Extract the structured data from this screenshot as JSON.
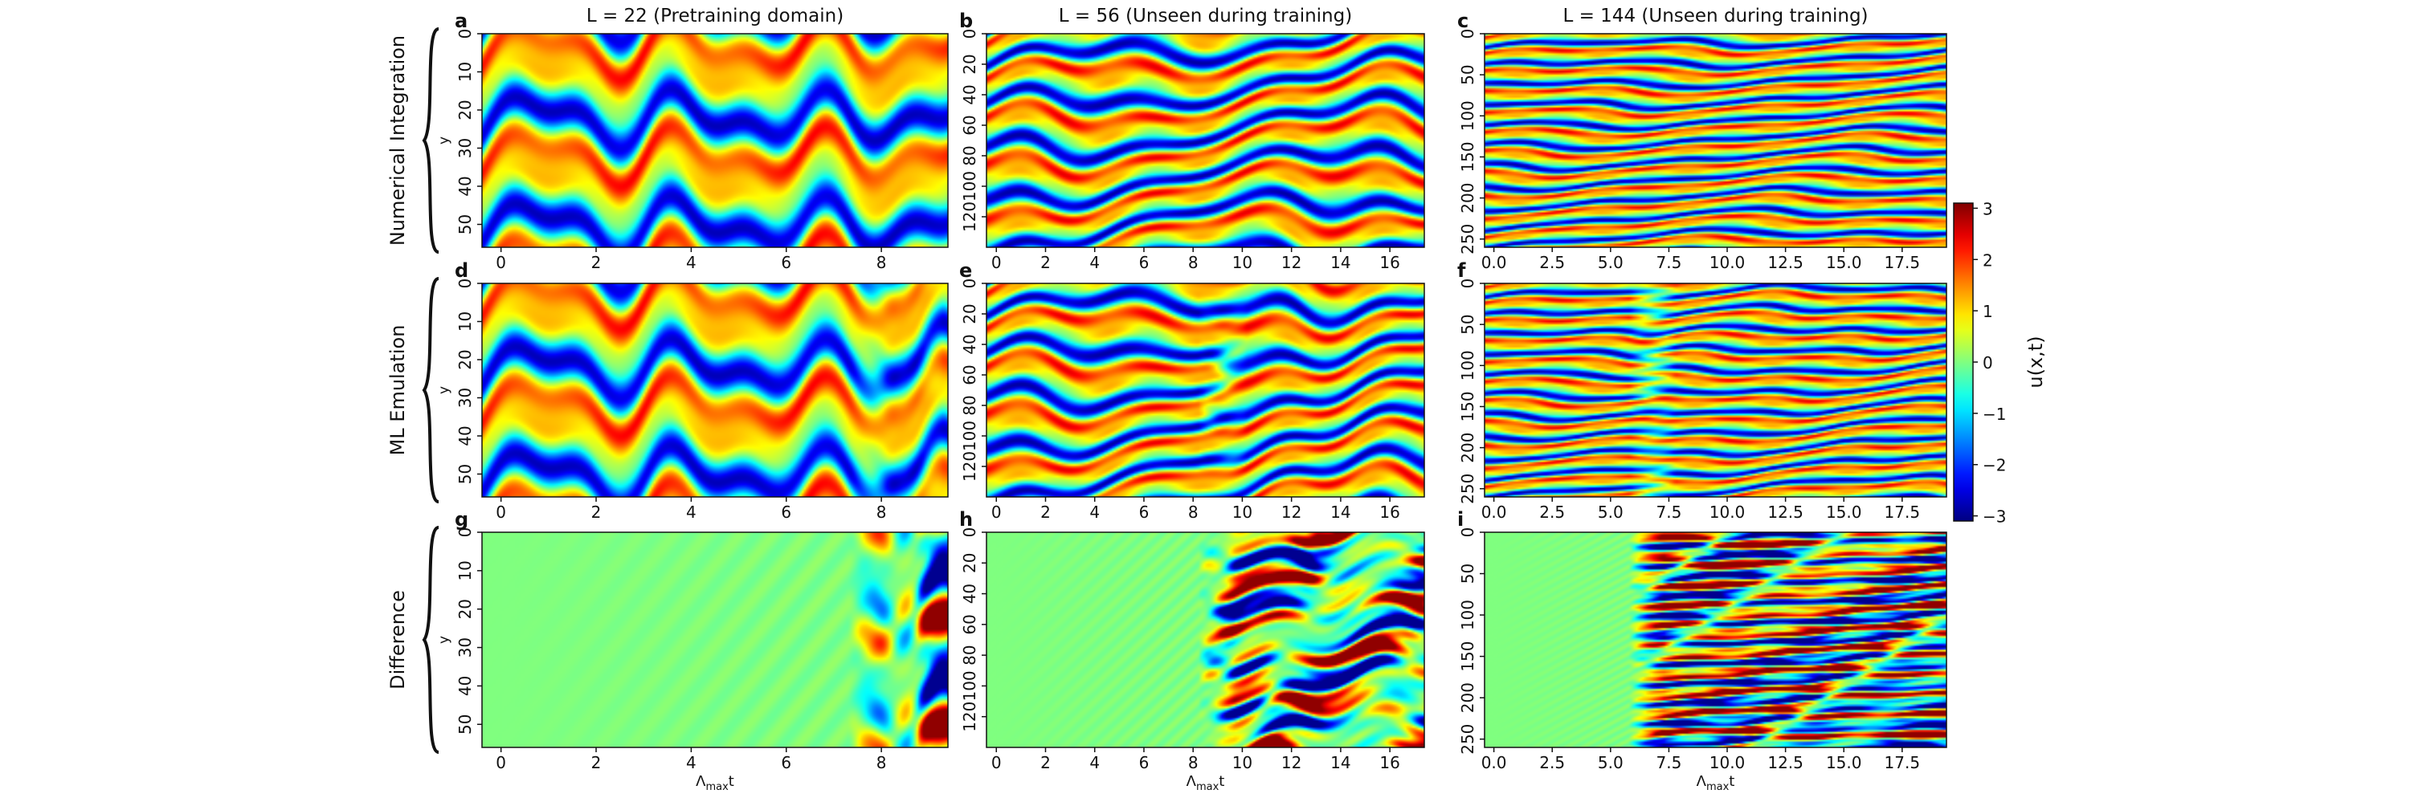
{
  "chart_data": {
    "type": "heatmap",
    "column_titles": [
      "L = 22 (Pretraining domain)",
      "L = 56 (Unseen during training)",
      "L = 144 (Unseen during training)"
    ],
    "row_labels": [
      "Numerical Integration",
      "ML Emulation",
      "Difference"
    ],
    "panel_letters": [
      "a",
      "b",
      "c",
      "d",
      "e",
      "f",
      "g",
      "h",
      "i"
    ],
    "ylabel": "y",
    "xlabel": "Λmaxt",
    "xlabel_main": "Λ",
    "xlabel_sub": "max",
    "xlabel_tail": "t",
    "colorbar": {
      "label": "u(x,t)",
      "ticks": [
        3,
        2,
        1,
        0,
        -1,
        -2,
        -3
      ],
      "tick_labels": [
        "3",
        "2",
        "1",
        "0",
        "−1",
        "−2",
        "−3"
      ],
      "range": [
        -3.1,
        3.1
      ],
      "colormap": "jet"
    },
    "columns": [
      {
        "L": 22,
        "xlim": [
          -0.4,
          9.4
        ],
        "ylim": [
          56,
          0
        ],
        "xticks": [
          0,
          2,
          4,
          6,
          8
        ],
        "xtick_labels": [
          "0",
          "2",
          "4",
          "6",
          "8"
        ],
        "yticks": [
          0,
          10,
          20,
          30,
          40,
          50
        ],
        "ytick_labels": [
          "0",
          "10",
          "20",
          "30",
          "40",
          "50"
        ],
        "divergence_t": 7.3
      },
      {
        "L": 56,
        "xlim": [
          -0.4,
          17.4
        ],
        "ylim": [
          140,
          0
        ],
        "xticks": [
          0,
          2,
          4,
          6,
          8,
          10,
          12,
          14,
          16
        ],
        "xtick_labels": [
          "0",
          "2",
          "4",
          "6",
          "8",
          "10",
          "12",
          "14",
          "16"
        ],
        "yticks": [
          0,
          20,
          40,
          60,
          80,
          100,
          120
        ],
        "ytick_labels": [
          "0",
          "20",
          "40",
          "60",
          "80",
          "100",
          "120"
        ],
        "divergence_t": 8.2
      },
      {
        "L": 144,
        "xlim": [
          -0.4,
          19.4
        ],
        "ylim": [
          260,
          0
        ],
        "xticks": [
          0,
          2.5,
          5,
          7.5,
          10,
          12.5,
          15,
          17.5
        ],
        "xtick_labels": [
          "0.0",
          "2.5",
          "5.0",
          "7.5",
          "10.0",
          "12.5",
          "15.0",
          "17.5"
        ],
        "yticks": [
          0,
          50,
          100,
          150,
          200,
          250
        ],
        "ytick_labels": [
          "0",
          "50",
          "100",
          "150",
          "200",
          "250"
        ],
        "divergence_t": 5.8
      }
    ]
  }
}
